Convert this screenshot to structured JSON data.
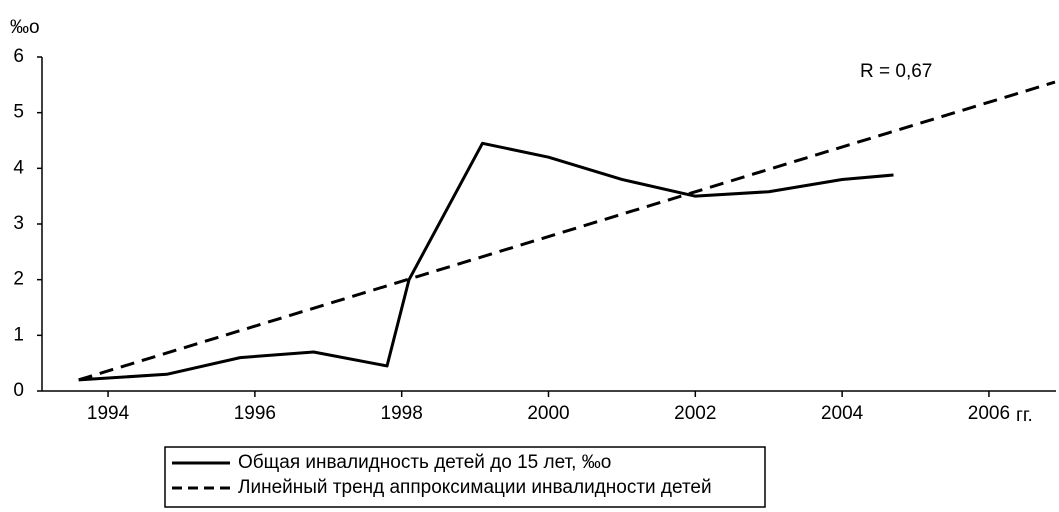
{
  "chart_data": {
    "type": "line",
    "y_label": "‰о",
    "x_unit": "гг.",
    "annotation": "R = 0,67",
    "xlim": [
      1993.1,
      2006.9
    ],
    "xticks": [
      1994,
      1996,
      1998,
      2000,
      2002,
      2004,
      2006
    ],
    "ylim": [
      0,
      6
    ],
    "yticks": [
      0,
      1,
      2,
      3,
      4,
      5,
      6
    ],
    "grid": false,
    "series": [
      {
        "name": "Общая инвалидность детей до 15 лет, ‰о",
        "color": "#000000",
        "line_style": "solid",
        "x": [
          1993.6,
          1994.8,
          1995.8,
          1996.8,
          1997.8,
          1998.1,
          1999.1,
          2000,
          2001,
          2002,
          2003,
          2004,
          2004.7
        ],
        "values": [
          0.2,
          0.3,
          0.6,
          0.7,
          0.45,
          2.0,
          4.45,
          4.2,
          3.8,
          3.5,
          3.58,
          3.8,
          3.88
        ]
      },
      {
        "name": "Линейный тренд аппроксимации инвалидности детей",
        "color": "#000000",
        "line_style": "dashed",
        "x": [
          1993.6,
          2006.9
        ],
        "values": [
          0.2,
          5.55
        ]
      }
    ]
  }
}
